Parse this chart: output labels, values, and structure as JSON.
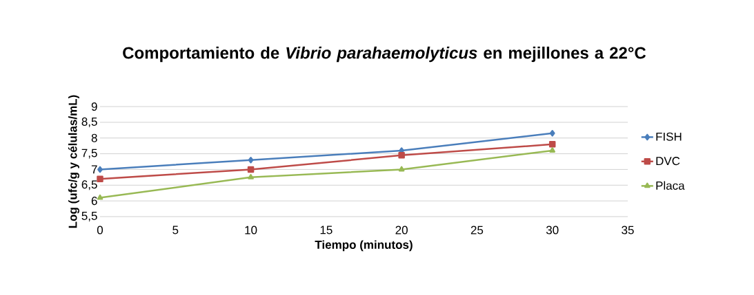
{
  "chart_data": {
    "type": "line",
    "title": "Comportamiento de *Vibrio parahaemolyticus* en mejillones a 22°C",
    "xlabel": "Tiempo (minutos)",
    "ylabel": "Log (ufc/g y células/mL)",
    "x": [
      0,
      10,
      20,
      30
    ],
    "series": [
      {
        "name": "FISH",
        "color": "#4a7ebb",
        "marker": "diamond",
        "values": [
          7.0,
          7.3,
          7.6,
          8.15
        ]
      },
      {
        "name": "DVC",
        "color": "#be4b48",
        "marker": "square",
        "values": [
          6.7,
          7.0,
          7.45,
          7.8
        ]
      },
      {
        "name": "Placa",
        "color": "#98b954",
        "marker": "triangle",
        "values": [
          6.1,
          6.75,
          7.0,
          7.6
        ]
      }
    ],
    "xlim": [
      0,
      35
    ],
    "xticks": [
      0,
      5,
      10,
      15,
      20,
      25,
      30,
      35
    ],
    "ylim": [
      5.5,
      9
    ],
    "yticks": [
      {
        "value": 5.5,
        "label": "5,5"
      },
      6,
      {
        "value": 6.5,
        "label": "6,5"
      },
      7,
      {
        "value": 7.5,
        "label": "7,5"
      },
      8,
      {
        "value": 8.5,
        "label": "8,5"
      },
      9
    ],
    "grid": "y",
    "legend": "right",
    "line_style": "solid"
  }
}
